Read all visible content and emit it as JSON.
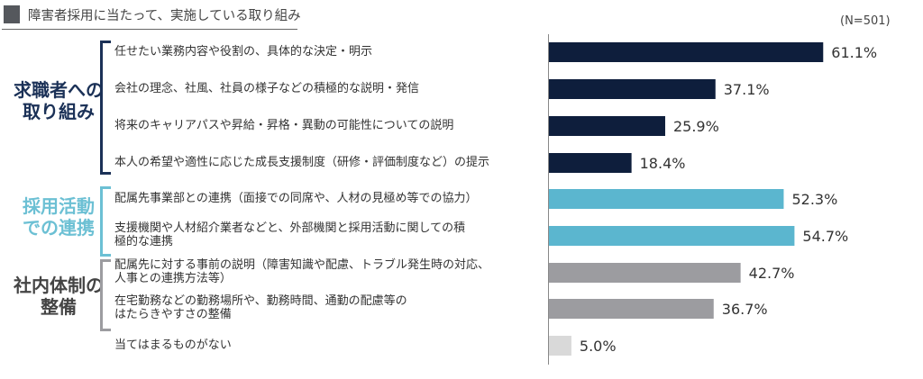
{
  "title": "障害者採用に当たって、実施している取り組み",
  "sample_note": "(N=501)",
  "groups": [
    {
      "label_line1": "求職者への",
      "label_line2": "取り組み",
      "color": "#1b3157"
    },
    {
      "label_line1": "採用活動",
      "label_line2": "での連携",
      "color": "#6cc0d4"
    },
    {
      "label_line1": "社内体制の",
      "label_line2": "整備",
      "color": "#444444"
    }
  ],
  "chart_data": {
    "type": "bar",
    "orientation": "horizontal",
    "categories": [
      "任せたい業務内容や役割の、具体的な決定・明示",
      "会社の理念、社風、社員の様子などの積極的な説明・発信",
      "将来のキャリアパスや昇給・昇格・異動の可能性についての説明",
      "本人の希望や適性に応じた成長支援制度（研修・評価制度など）の提示",
      "配属先事業部との連携（面接での同席や、人材の見極め等での協力）",
      "支援機関や人材紹介業者などと、外部機関と採用活動に関しての積極的な連携",
      "配属先に対する事前の説明（障害知識や配慮、トラブル発生時の対応、人事との連携方法等）",
      "在宅勤務などの勤務場所や、勤務時間、通勤の配慮等のはたらきやすさの整備",
      "当てはまるものがない"
    ],
    "category_lines": [
      [
        "任せたい業務内容や役割の、具体的な決定・明示"
      ],
      [
        "会社の理念、社風、社員の様子などの積極的な説明・発信"
      ],
      [
        "将来のキャリアパスや昇給・昇格・異動の可能性についての説明"
      ],
      [
        "本人の希望や適性に応じた成長支援制度（研修・評価制度など）の提示"
      ],
      [
        "配属先事業部との連携（面接での同席や、人材の見極め等での協力）"
      ],
      [
        "支援機関や人材紹介業者などと、外部機関と採用活動に関しての積",
        "極的な連携"
      ],
      [
        "配属先に対する事前の説明（障害知識や配慮、トラブル発生時の対応、",
        "人事との連携方法等）"
      ],
      [
        "在宅勤務などの勤務場所や、勤務時間、通勤の配慮等の",
        "はたらきやすさの整備"
      ],
      [
        "当てはまるものがない"
      ]
    ],
    "values": [
      61.1,
      37.1,
      25.9,
      18.4,
      52.3,
      54.7,
      42.7,
      36.7,
      5.0
    ],
    "data_labels": [
      "61.1%",
      "37.1%",
      "25.9%",
      "18.4%",
      "52.3%",
      "54.7%",
      "42.7%",
      "36.7%",
      "5.0%"
    ],
    "bar_colors": [
      "#0e1e3c",
      "#0e1e3c",
      "#0e1e3c",
      "#0e1e3c",
      "#5bb6cf",
      "#5bb6cf",
      "#9c9ca0",
      "#9c9ca0",
      "#d9d9d9"
    ],
    "xlim": [
      0,
      100
    ],
    "grid": false,
    "legend": "none"
  }
}
